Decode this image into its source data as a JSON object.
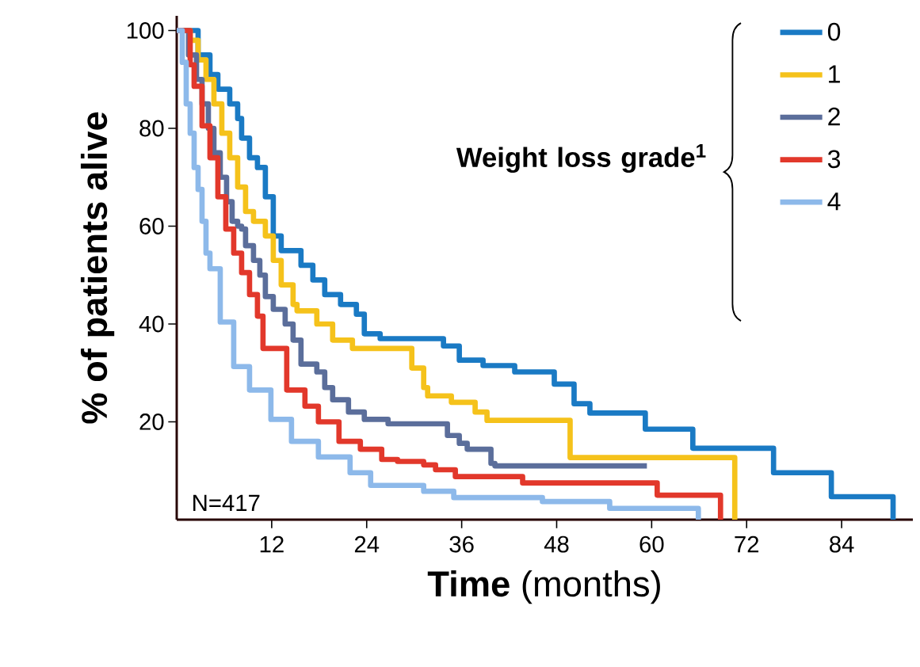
{
  "chart_data": {
    "type": "step",
    "xlabel": "**Time** (months)",
    "ylabel": "% of patients alive",
    "legend_title": "Weight loss grade$^{1}$",
    "legend": "top right",
    "annotations": [
      "N=417"
    ],
    "xlim": [
      0,
      93
    ],
    "ylim": [
      0,
      103
    ],
    "xticks": [
      12,
      24,
      36,
      48,
      60,
      72,
      84
    ],
    "yticks": [
      20,
      40,
      60,
      80,
      100
    ],
    "series": [
      {
        "name": "0",
        "color": "#1a7ac4",
        "x": [
          0,
          2.7,
          4.2,
          5.2,
          6.7,
          7.7,
          8.2,
          9.2,
          10.2,
          11.2,
          12.2,
          13.2,
          15.7,
          17.2,
          18.7,
          20.7,
          22.7,
          23.7,
          25.7,
          33.7,
          35.7,
          38.7,
          42.7,
          47.7,
          50.2,
          52.2,
          59.2,
          65.2,
          75.4,
          82.7,
          90.5
        ],
        "values": [
          100,
          95,
          91,
          88,
          85,
          82,
          78,
          74,
          72,
          66,
          58,
          55,
          52,
          49,
          46,
          44,
          42,
          38,
          37,
          35.5,
          32.6,
          31.5,
          30.2,
          27.7,
          23.7,
          21.8,
          18.5,
          14.6,
          9.6,
          4.7,
          0
        ]
      },
      {
        "name": "1",
        "color": "#f5c21b",
        "x": [
          0,
          1.7,
          2.7,
          3.7,
          4.7,
          5.7,
          6.7,
          7.7,
          8.7,
          9.7,
          11.2,
          12.2,
          13.2,
          14.7,
          15.2,
          17.7,
          19.7,
          22.2,
          29.7,
          31.2,
          31.7,
          34.7,
          37.7,
          39.2,
          49.7,
          70.5
        ],
        "values": [
          100,
          98,
          94,
          90,
          85,
          79,
          74,
          68,
          63,
          61,
          58,
          53,
          48,
          44,
          42.7,
          40,
          36.7,
          35,
          31,
          27,
          25.3,
          24,
          22,
          20.3,
          12.7,
          0
        ]
      },
      {
        "name": "2",
        "color": "#5b6e9b",
        "x": [
          0,
          1.5,
          2.5,
          3.2,
          4,
          4.7,
          5.5,
          6.3,
          7,
          7.7,
          8.2,
          8.7,
          9.7,
          10.5,
          11.2,
          12.2,
          13.7,
          14.7,
          15.7,
          17.7,
          18.7,
          19.7,
          21.7,
          23.7,
          26.7,
          34.2,
          35.7,
          36.7,
          39.7,
          40.2,
          59.4
        ],
        "values": [
          100,
          95,
          90,
          85,
          80,
          75,
          70,
          65,
          61,
          60,
          59.4,
          56,
          53,
          50,
          45.6,
          43,
          40,
          36.7,
          31.8,
          30.2,
          27,
          24.5,
          22,
          20.5,
          19.6,
          17.2,
          15.6,
          14.4,
          11.5,
          11,
          11
        ]
      },
      {
        "name": "3",
        "color": "#e2382b",
        "x": [
          0,
          1.7,
          2.2,
          3.2,
          4.2,
          5.2,
          6.2,
          7.2,
          8.2,
          9.2,
          10.2,
          10.9,
          13.9,
          16.2,
          17.9,
          20.5,
          23.2,
          25.9,
          27.9,
          31.2,
          32.7,
          35.2,
          43.7,
          60.7,
          68.7
        ],
        "values": [
          100,
          93,
          88.6,
          80.5,
          74,
          66,
          59.4,
          54.5,
          50.5,
          46,
          41.6,
          35,
          26.5,
          23.2,
          20,
          16,
          14.4,
          12.3,
          11.9,
          11.2,
          10.2,
          8.8,
          7.5,
          5,
          0
        ]
      },
      {
        "name": "4",
        "color": "#8db9ea",
        "x": [
          0,
          0.7,
          1.2,
          1.7,
          2.2,
          2.7,
          3.2,
          3.7,
          4.2,
          5.5,
          7.2,
          9.2,
          11.9,
          14.5,
          17.9,
          21.9,
          24.5,
          31.2,
          35,
          46.2,
          54.7,
          65.9
        ],
        "values": [
          100,
          93.5,
          85,
          79,
          72,
          67.5,
          61,
          54.5,
          51.3,
          40.4,
          31.3,
          26.5,
          20.5,
          16,
          12.8,
          9.6,
          7,
          5.8,
          4.5,
          3.7,
          2.3,
          0
        ]
      }
    ]
  }
}
